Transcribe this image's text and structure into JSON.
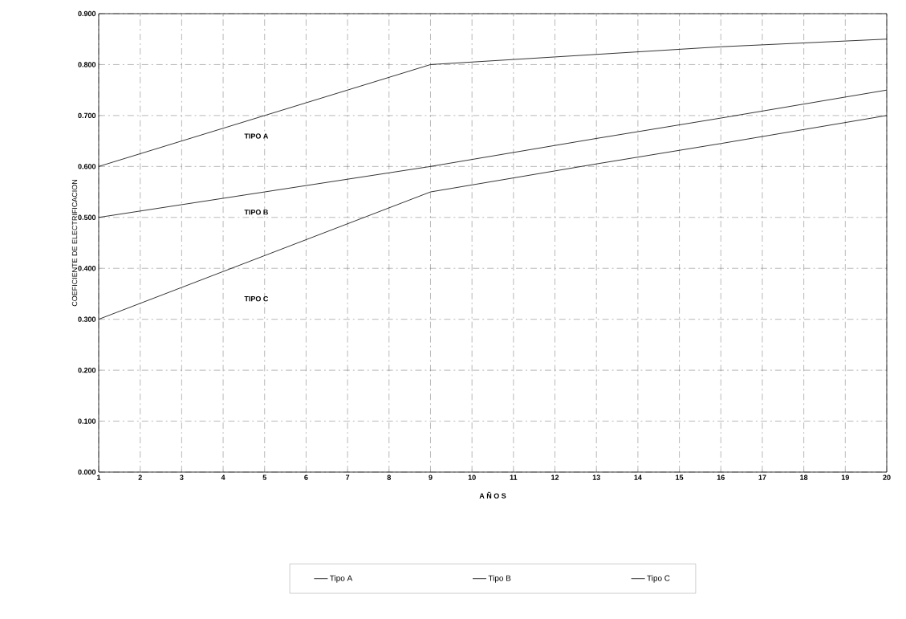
{
  "chart_data": {
    "type": "line",
    "xlabel": "A Ñ O S",
    "ylabel": "COEFICIENTE DE ELECTRIFICACION",
    "x": [
      1,
      9,
      13,
      16,
      20
    ],
    "series": [
      {
        "name": "Tipo A",
        "color": "#000000",
        "values": [
          0.6,
          0.8,
          0.82,
          0.835,
          0.85
        ]
      },
      {
        "name": "Tipo B",
        "color": "#000000",
        "values": [
          0.5,
          0.6,
          0.655,
          0.695,
          0.75
        ]
      },
      {
        "name": "Tipo C",
        "color": "#000000",
        "values": [
          0.3,
          0.55,
          0.605,
          0.645,
          0.7
        ]
      }
    ],
    "annotations": [
      "TIPO A",
      "TIPO B",
      "TIPO C"
    ],
    "xlim": [
      1,
      20
    ],
    "ylim": [
      0,
      0.9
    ],
    "xticks": [
      1,
      2,
      3,
      4,
      5,
      6,
      7,
      8,
      9,
      10,
      11,
      12,
      13,
      14,
      15,
      16,
      17,
      18,
      19,
      20
    ],
    "yticks": [
      {
        "value": 0,
        "label": "0.000"
      },
      {
        "value": 0.1,
        "label": "0.100"
      },
      {
        "value": 0.2,
        "label": "0.200"
      },
      {
        "value": 0.3,
        "label": "0.300"
      },
      {
        "value": 0.4,
        "label": "0.400"
      },
      {
        "value": 0.5,
        "label": "0.500"
      },
      {
        "value": 0.6,
        "label": "0.600"
      },
      {
        "value": 0.7,
        "label": "0.700"
      },
      {
        "value": 0.8,
        "label": "0.800"
      },
      {
        "value": 0.9,
        "label": "0.900"
      }
    ],
    "grid": true,
    "legend": "bottom",
    "marker": "none",
    "line_style": "solid"
  }
}
